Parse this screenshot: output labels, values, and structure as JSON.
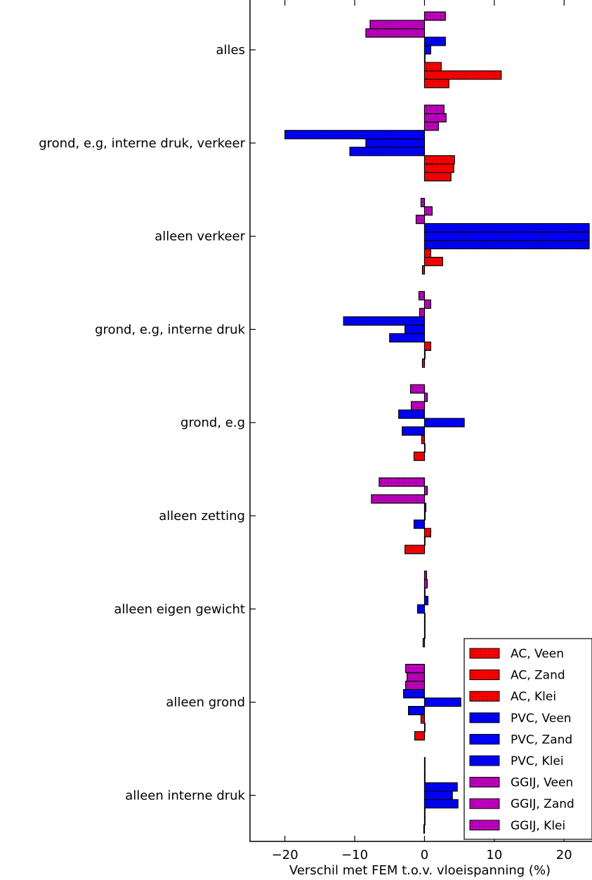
{
  "chart_data": {
    "type": "bar",
    "orientation": "horizontal",
    "title": "",
    "xlabel": "Verschil met FEM t.o.v. vloeispanning (%)",
    "ylabel": "",
    "xlim": [
      -25,
      24
    ],
    "xticks": [
      -20,
      -10,
      0,
      10,
      20
    ],
    "xtick_labels": [
      "−20",
      "−10",
      "0",
      "10",
      "20"
    ],
    "grid": false,
    "legend_position": "bottom-right",
    "categories": [
      "alles",
      "grond, e.g, interne druk, verkeer",
      "alleen verkeer",
      "grond, e.g, interne druk",
      "grond, e.g",
      "alleen zetting",
      "alleen eigen gewicht",
      "alleen grond",
      "alleen interne druk"
    ],
    "series": [
      {
        "name": "AC, Veen",
        "color": "#ff0000",
        "pattern": "grid",
        "values": [
          3.5,
          3.8,
          -0.3,
          -0.3,
          -1.5,
          -2.8,
          -0.2,
          -1.4,
          -0.1
        ]
      },
      {
        "name": "AC, Zand",
        "color": "#ff0000",
        "pattern": "dense",
        "values": [
          11.0,
          4.2,
          2.6,
          0.0,
          0.0,
          0.0,
          0.0,
          0.0,
          0.0
        ]
      },
      {
        "name": "AC, Klei",
        "color": "#ff0000",
        "pattern": "dots",
        "values": [
          2.4,
          4.3,
          0.9,
          0.9,
          -0.4,
          0.9,
          0.0,
          -0.5,
          0.0
        ]
      },
      {
        "name": "PVC, Veen",
        "color": "#0000ff",
        "pattern": "grid",
        "values": [
          0.0,
          -10.7,
          23.6,
          -5.0,
          -3.2,
          -1.5,
          0.0,
          -2.3,
          4.8
        ]
      },
      {
        "name": "PVC, Zand",
        "color": "#0000ff",
        "pattern": "dense",
        "values": [
          0.9,
          -8.4,
          23.6,
          -2.8,
          5.7,
          0.1,
          -1.0,
          5.2,
          4.0
        ]
      },
      {
        "name": "PVC, Klei",
        "color": "#0000ff",
        "pattern": "dots",
        "values": [
          3.0,
          -20.0,
          23.6,
          -11.6,
          -3.7,
          0.2,
          0.5,
          -3.0,
          4.7
        ]
      },
      {
        "name": "GGIJ, Veen",
        "color": "#c000c0",
        "pattern": "grid",
        "values": [
          -8.4,
          2.0,
          -1.2,
          -0.7,
          -1.9,
          -7.6,
          0.0,
          -2.7,
          0.0
        ]
      },
      {
        "name": "GGIJ, Zand",
        "color": "#c000c0",
        "pattern": "dense",
        "values": [
          -7.8,
          3.1,
          1.1,
          0.9,
          0.4,
          0.4,
          0.4,
          -2.5,
          0.0
        ]
      },
      {
        "name": "GGIJ, Klei",
        "color": "#c000c0",
        "pattern": "dots",
        "values": [
          3.0,
          2.8,
          -0.5,
          -0.8,
          -2.0,
          -6.5,
          0.3,
          -2.7,
          0.0
        ]
      }
    ]
  },
  "colors": {
    "ac": "#ff0000",
    "pvc": "#0000ff",
    "ggij": "#c000c0",
    "bar_edge": "#000000",
    "axis": "#000000"
  }
}
